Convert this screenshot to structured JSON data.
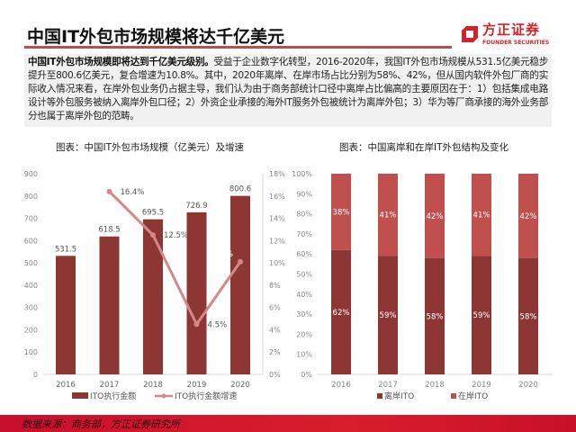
{
  "header": {
    "title": "中国IT外包市场规模将达千亿美元",
    "logo_cn": "方正证券",
    "logo_en": "FOUNDER SECURITIES"
  },
  "summary": {
    "lead": "中国IT外包市场规模即将达到千亿美元级别。",
    "body": "受益于企业数字化转型，2016-2020年，我国IT外包市场规模从531.5亿美元稳步提升至800.6亿美元，复合增速为10.8%。其中，2020年离岸、在岸市场占比分别为58%、42%，但从国内软件外包厂商的实际收入情况来看，在岸外包业务仍占据主导，我们认为由于商务部统计口径中离岸占比偏高的主要原因在于：1）包括集成电路设计等外包服务被纳入离岸外包口径；2）外资企业承接的海外IT服务外包被统计为离岸外包；3）华为等厂商承接的海外业务部分也属于离岸外包的范畴。"
  },
  "footer": {
    "source": "数据来源：商务部，方正证券研究所"
  },
  "colors": {
    "accent": "#c8102e",
    "bar_dark": "#8e3634",
    "bar_light": "#c0504d",
    "line": "#d4888a"
  },
  "chart_data": [
    {
      "type": "bar+line",
      "title": "图表：中国IT外包市场规模（亿美元）及增速",
      "categories": [
        "2016",
        "2017",
        "2018",
        "2019",
        "2020"
      ],
      "series": [
        {
          "name": "ITO执行金额",
          "type": "bar",
          "axis": "left",
          "values": [
            531.5,
            618.5,
            695.5,
            726.9,
            800.6
          ],
          "labels": [
            "531.5",
            "618.5",
            "695.5",
            "726.9",
            "800.6"
          ]
        },
        {
          "name": "ITO执行金额增速",
          "type": "line",
          "axis": "right",
          "values": [
            null,
            16.4,
            12.5,
            4.5,
            10.1
          ],
          "labels": [
            "",
            "16.4%",
            "12.5%",
            "4.5%",
            "10.1%"
          ]
        }
      ],
      "ylim_left": [
        0,
        900
      ],
      "yticks_left": [
        "0",
        "100",
        "200",
        "300",
        "400",
        "500",
        "600",
        "700",
        "800",
        "900"
      ],
      "ylim_right": [
        0,
        18
      ],
      "yticks_right": [
        "0%",
        "2%",
        "4%",
        "6%",
        "8%",
        "10%",
        "12%",
        "14%",
        "16%",
        "18%"
      ],
      "grid": false,
      "legend": "bottom"
    },
    {
      "type": "stacked-bar",
      "title": "图表：中国离岸和在岸IT外包结构及变化",
      "categories": [
        "2016",
        "2017",
        "2018",
        "2019",
        "2020"
      ],
      "series": [
        {
          "name": "离岸ITO",
          "values": [
            62,
            59,
            58,
            59,
            58
          ]
        },
        {
          "name": "在岸ITO",
          "values": [
            38,
            41,
            42,
            41,
            42
          ]
        }
      ],
      "ylim": [
        0,
        100
      ],
      "yticks": [
        "0%",
        "10%",
        "20%",
        "30%",
        "40%",
        "50%",
        "60%",
        "70%",
        "80%",
        "90%",
        "100%"
      ],
      "grid": false,
      "legend": "bottom"
    }
  ]
}
